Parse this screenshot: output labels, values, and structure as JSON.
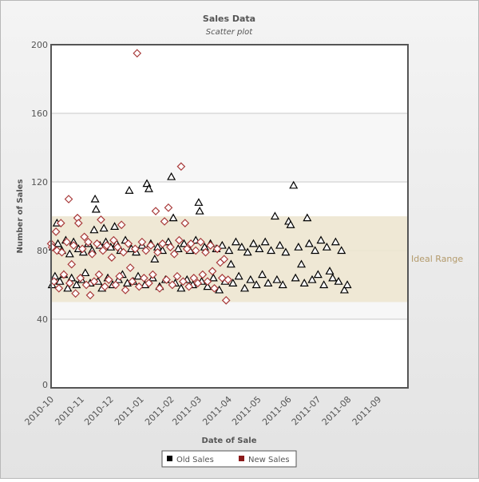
{
  "chart_data": {
    "type": "scatter",
    "title": "Sales Data",
    "subtitle": "Scatter plot",
    "xlabel": "Date of Sale",
    "ylabel": "Number of Sales",
    "xlim": [
      "2010-10-01",
      "2011-10-01"
    ],
    "ylim": [
      0,
      200
    ],
    "x_tick_labels": [
      "2010-10",
      "2010-11",
      "2010-12",
      "2011-01",
      "2011-02",
      "2011-03",
      "2011-04",
      "2011-05",
      "2011-06",
      "2011-07",
      "2011-08",
      "2011-09"
    ],
    "y_tick_labels": [
      "0",
      "40",
      "80",
      "120",
      "160",
      "200"
    ],
    "y_ticks": [
      0,
      40,
      80,
      120,
      160,
      200
    ],
    "grid": true,
    "legend_position": "bottom",
    "plot_band": {
      "label": "Ideal Range",
      "from": 50,
      "to": 100,
      "color": "#ede5d0",
      "label_color": "#b39a6b"
    },
    "series": [
      {
        "name": "Old Sales",
        "marker": "triangle",
        "color": "#000000",
        "points": [
          [
            "2010-10-02",
            60
          ],
          [
            "2010-10-03",
            82
          ],
          [
            "2010-10-05",
            65
          ],
          [
            "2010-10-07",
            96
          ],
          [
            "2010-10-08",
            84
          ],
          [
            "2010-10-10",
            62
          ],
          [
            "2010-10-12",
            80
          ],
          [
            "2010-10-14",
            66
          ],
          [
            "2010-10-16",
            86
          ],
          [
            "2010-10-18",
            58
          ],
          [
            "2010-10-20",
            78
          ],
          [
            "2010-10-22",
            64
          ],
          [
            "2010-10-24",
            85
          ],
          [
            "2010-10-27",
            60
          ],
          [
            "2010-10-29",
            81
          ],
          [
            "2010-11-01",
            63
          ],
          [
            "2010-11-03",
            79
          ],
          [
            "2010-11-05",
            67
          ],
          [
            "2010-11-08",
            84
          ],
          [
            "2010-11-10",
            61
          ],
          [
            "2010-11-12",
            80
          ],
          [
            "2010-11-14",
            92
          ],
          [
            "2010-11-15",
            110
          ],
          [
            "2010-11-16",
            104
          ],
          [
            "2010-11-18",
            62
          ],
          [
            "2010-11-20",
            83
          ],
          [
            "2010-11-22",
            58
          ],
          [
            "2010-11-24",
            93
          ],
          [
            "2010-11-26",
            85
          ],
          [
            "2010-11-28",
            64
          ],
          [
            "2010-12-01",
            82
          ],
          [
            "2010-12-03",
            60
          ],
          [
            "2010-12-05",
            94
          ],
          [
            "2010-12-07",
            84
          ],
          [
            "2010-12-09",
            63
          ],
          [
            "2010-12-11",
            80
          ],
          [
            "2010-12-13",
            66
          ],
          [
            "2010-12-16",
            86
          ],
          [
            "2010-12-18",
            61
          ],
          [
            "2010-12-20",
            115
          ],
          [
            "2010-12-22",
            81
          ],
          [
            "2010-12-24",
            62
          ],
          [
            "2010-12-27",
            79
          ],
          [
            "2010-12-29",
            65
          ],
          [
            "2011-01-02",
            83
          ],
          [
            "2011-01-05",
            60
          ],
          [
            "2011-01-07",
            119
          ],
          [
            "2011-01-09",
            116
          ],
          [
            "2011-01-11",
            84
          ],
          [
            "2011-01-13",
            64
          ],
          [
            "2011-01-15",
            75
          ],
          [
            "2011-01-18",
            82
          ],
          [
            "2011-01-20",
            59
          ],
          [
            "2011-01-23",
            80
          ],
          [
            "2011-01-26",
            63
          ],
          [
            "2011-01-29",
            85
          ],
          [
            "2011-02-01",
            123
          ],
          [
            "2011-02-03",
            99
          ],
          [
            "2011-02-05",
            61
          ],
          [
            "2011-02-08",
            81
          ],
          [
            "2011-02-11",
            58
          ],
          [
            "2011-02-14",
            84
          ],
          [
            "2011-02-17",
            63
          ],
          [
            "2011-02-20",
            80
          ],
          [
            "2011-02-23",
            60
          ],
          [
            "2011-02-26",
            86
          ],
          [
            "2011-03-01",
            108
          ],
          [
            "2011-03-02",
            103
          ],
          [
            "2011-03-04",
            62
          ],
          [
            "2011-03-07",
            82
          ],
          [
            "2011-03-10",
            59
          ],
          [
            "2011-03-13",
            84
          ],
          [
            "2011-03-16",
            64
          ],
          [
            "2011-03-19",
            81
          ],
          [
            "2011-03-22",
            57
          ],
          [
            "2011-03-25",
            83
          ],
          [
            "2011-03-28",
            62
          ],
          [
            "2011-04-01",
            80
          ],
          [
            "2011-04-03",
            72
          ],
          [
            "2011-04-05",
            61
          ],
          [
            "2011-04-08",
            85
          ],
          [
            "2011-04-11",
            65
          ],
          [
            "2011-04-14",
            82
          ],
          [
            "2011-04-17",
            58
          ],
          [
            "2011-04-20",
            79
          ],
          [
            "2011-04-23",
            63
          ],
          [
            "2011-04-26",
            84
          ],
          [
            "2011-04-29",
            60
          ],
          [
            "2011-05-02",
            81
          ],
          [
            "2011-05-05",
            66
          ],
          [
            "2011-05-08",
            85
          ],
          [
            "2011-05-11",
            61
          ],
          [
            "2011-05-14",
            80
          ],
          [
            "2011-05-18",
            100
          ],
          [
            "2011-05-20",
            63
          ],
          [
            "2011-05-23",
            83
          ],
          [
            "2011-05-26",
            60
          ],
          [
            "2011-05-29",
            79
          ],
          [
            "2011-06-01",
            97
          ],
          [
            "2011-06-03",
            95
          ],
          [
            "2011-06-06",
            118
          ],
          [
            "2011-06-08",
            64
          ],
          [
            "2011-06-11",
            82
          ],
          [
            "2011-06-14",
            72
          ],
          [
            "2011-06-17",
            61
          ],
          [
            "2011-06-20",
            99
          ],
          [
            "2011-06-22",
            84
          ],
          [
            "2011-06-25",
            63
          ],
          [
            "2011-06-28",
            80
          ],
          [
            "2011-07-01",
            66
          ],
          [
            "2011-07-04",
            86
          ],
          [
            "2011-07-07",
            60
          ],
          [
            "2011-07-10",
            82
          ],
          [
            "2011-07-13",
            68
          ],
          [
            "2011-07-16",
            64
          ],
          [
            "2011-07-19",
            85
          ],
          [
            "2011-07-22",
            62
          ],
          [
            "2011-07-25",
            80
          ],
          [
            "2011-07-28",
            57
          ],
          [
            "2011-07-31",
            60
          ]
        ]
      },
      {
        "name": "New Sales",
        "marker": "diamond",
        "color": "#8b1a1a",
        "points": [
          [
            "2010-10-01",
            84
          ],
          [
            "2010-10-02",
            82
          ],
          [
            "2010-10-04",
            62
          ],
          [
            "2010-10-06",
            91
          ],
          [
            "2010-10-07",
            80
          ],
          [
            "2010-10-09",
            58
          ],
          [
            "2010-10-11",
            96
          ],
          [
            "2010-10-12",
            79
          ],
          [
            "2010-10-14",
            66
          ],
          [
            "2010-10-17",
            85
          ],
          [
            "2010-10-19",
            110
          ],
          [
            "2010-10-20",
            61
          ],
          [
            "2010-10-22",
            72
          ],
          [
            "2010-10-24",
            83
          ],
          [
            "2010-10-26",
            55
          ],
          [
            "2010-10-28",
            99
          ],
          [
            "2010-10-29",
            96
          ],
          [
            "2010-10-31",
            64
          ],
          [
            "2010-11-02",
            81
          ],
          [
            "2010-11-04",
            88
          ],
          [
            "2010-11-06",
            60
          ],
          [
            "2010-11-08",
            85
          ],
          [
            "2010-11-10",
            54
          ],
          [
            "2010-11-12",
            78
          ],
          [
            "2010-11-14",
            62
          ],
          [
            "2010-11-17",
            84
          ],
          [
            "2010-11-19",
            66
          ],
          [
            "2010-11-21",
            98
          ],
          [
            "2010-11-23",
            80
          ],
          [
            "2010-11-25",
            59
          ],
          [
            "2010-11-27",
            83
          ],
          [
            "2010-11-29",
            63
          ],
          [
            "2010-12-02",
            76
          ],
          [
            "2010-12-04",
            86
          ],
          [
            "2010-12-06",
            60
          ],
          [
            "2010-12-08",
            82
          ],
          [
            "2010-12-10",
            65
          ],
          [
            "2010-12-12",
            95
          ],
          [
            "2010-12-14",
            79
          ],
          [
            "2010-12-16",
            57
          ],
          [
            "2010-12-19",
            84
          ],
          [
            "2010-12-21",
            70
          ],
          [
            "2010-12-23",
            62
          ],
          [
            "2010-12-26",
            81
          ],
          [
            "2010-12-28",
            195
          ],
          [
            "2010-12-30",
            59
          ],
          [
            "2011-01-02",
            85
          ],
          [
            "2011-01-04",
            64
          ],
          [
            "2011-01-06",
            80
          ],
          [
            "2011-01-09",
            61
          ],
          [
            "2011-01-11",
            83
          ],
          [
            "2011-01-13",
            66
          ],
          [
            "2011-01-16",
            103
          ],
          [
            "2011-01-18",
            79
          ],
          [
            "2011-01-20",
            58
          ],
          [
            "2011-01-23",
            84
          ],
          [
            "2011-01-25",
            97
          ],
          [
            "2011-01-27",
            63
          ],
          [
            "2011-01-29",
            105
          ],
          [
            "2011-01-31",
            82
          ],
          [
            "2011-02-02",
            60
          ],
          [
            "2011-02-04",
            78
          ],
          [
            "2011-02-07",
            65
          ],
          [
            "2011-02-09",
            86
          ],
          [
            "2011-02-11",
            129
          ],
          [
            "2011-02-13",
            62
          ],
          [
            "2011-02-15",
            96
          ],
          [
            "2011-02-17",
            81
          ],
          [
            "2011-02-19",
            59
          ],
          [
            "2011-02-21",
            84
          ],
          [
            "2011-02-24",
            64
          ],
          [
            "2011-02-26",
            80
          ],
          [
            "2011-02-28",
            61
          ],
          [
            "2011-03-03",
            85
          ],
          [
            "2011-03-05",
            66
          ],
          [
            "2011-03-08",
            79
          ],
          [
            "2011-03-10",
            62
          ],
          [
            "2011-03-13",
            83
          ],
          [
            "2011-03-15",
            68
          ],
          [
            "2011-03-17",
            58
          ],
          [
            "2011-03-20",
            81
          ],
          [
            "2011-03-23",
            73
          ],
          [
            "2011-03-25",
            64
          ],
          [
            "2011-03-27",
            75
          ],
          [
            "2011-03-29",
            51
          ],
          [
            "2011-03-31",
            63
          ]
        ]
      }
    ]
  }
}
